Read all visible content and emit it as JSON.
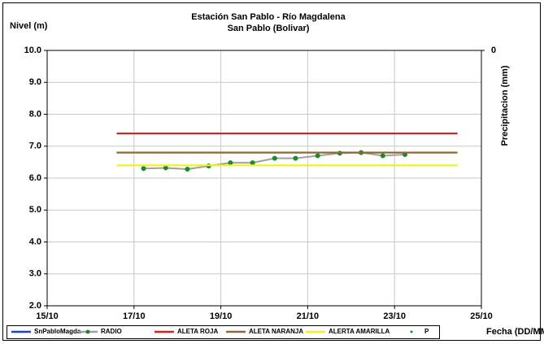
{
  "chart_data": {
    "type": "line",
    "title": "Estación San Pablo - Río Magdalena",
    "subtitle": "San Pablo (Bolivar)",
    "y_label": "Nivel (m)",
    "y2_label": "Precipitacion (mm)",
    "x_label": "Fecha (DD/MM)",
    "xlim": [
      15,
      25
    ],
    "xticks": [
      {
        "value": 15,
        "label": "15/10"
      },
      {
        "value": 17,
        "label": "17/10"
      },
      {
        "value": 19,
        "label": "19/10"
      },
      {
        "value": 21,
        "label": "21/10"
      },
      {
        "value": 23,
        "label": "23/10"
      },
      {
        "value": 25,
        "label": "25/10"
      }
    ],
    "ylim": [
      2,
      10
    ],
    "yticks": [
      {
        "value": 2,
        "label": "2.0"
      },
      {
        "value": 3,
        "label": "3.0"
      },
      {
        "value": 4,
        "label": "4.0"
      },
      {
        "value": 5,
        "label": "5.0"
      },
      {
        "value": 6,
        "label": "6.0"
      },
      {
        "value": 7,
        "label": "7.0"
      },
      {
        "value": 8,
        "label": "8.0"
      },
      {
        "value": 9,
        "label": "9.0"
      },
      {
        "value": 10,
        "label": "10.0"
      }
    ],
    "y2ticks": [
      0
    ],
    "grid": true,
    "series": [
      {
        "name": "SnPabloMagda",
        "color": "#1f3fd0",
        "x": [],
        "values": []
      },
      {
        "name": "RADIO",
        "color": "#a0a0a0",
        "marker_color": "#1a8a2a",
        "x": [
          17.22,
          17.73,
          18.23,
          18.72,
          19.22,
          19.73,
          20.24,
          20.72,
          21.23,
          21.74,
          22.23,
          22.73,
          23.24
        ],
        "values": [
          6.3,
          6.32,
          6.28,
          6.38,
          6.48,
          6.48,
          6.62,
          6.62,
          6.7,
          6.78,
          6.8,
          6.7,
          6.74
        ]
      },
      {
        "name": "ALETA ROJA",
        "color": "#e02020",
        "x": [
          16.6,
          24.45
        ],
        "values": [
          7.4,
          7.4
        ]
      },
      {
        "name": "ALETA NARANJA",
        "color": "#8b6a3a",
        "x": [
          16.6,
          24.45
        ],
        "values": [
          6.8,
          6.8
        ]
      },
      {
        "name": "ALERTA AMARILLA",
        "color": "#f0f020",
        "x": [
          16.6,
          24.45
        ],
        "values": [
          6.4,
          6.4
        ]
      },
      {
        "name": "P",
        "color": "#1a8a2a",
        "marker_only": true,
        "x": [],
        "values": []
      }
    ]
  }
}
